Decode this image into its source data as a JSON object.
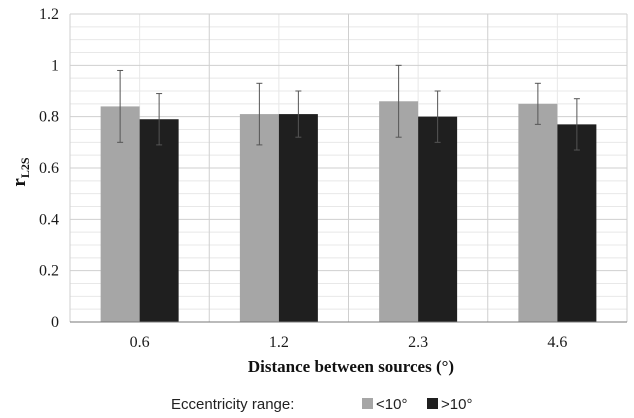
{
  "chart_data": {
    "type": "bar",
    "categories": [
      "0.6",
      "1.2",
      "2.3",
      "4.6"
    ],
    "series": [
      {
        "name": "<10°",
        "color": "#a6a6a6",
        "values": [
          0.84,
          0.81,
          0.86,
          0.85
        ],
        "errors": [
          0.14,
          0.12,
          0.14,
          0.08
        ]
      },
      {
        "name": ">10°",
        "color": "#1f1f1f",
        "values": [
          0.79,
          0.81,
          0.8,
          0.77
        ],
        "errors": [
          0.1,
          0.09,
          0.1,
          0.1
        ]
      }
    ],
    "xlabel": "Distance between sources (°)",
    "ylabel": "r",
    "ylabel_subscript": "L2S",
    "ylim": [
      0,
      1.2
    ],
    "yticks": [
      "0",
      "0.2",
      "0.4",
      "0.6",
      "0.8",
      "1",
      "1.2"
    ],
    "grid": true,
    "legend": {
      "title": "Eccentricity range:",
      "position": "bottom"
    }
  }
}
